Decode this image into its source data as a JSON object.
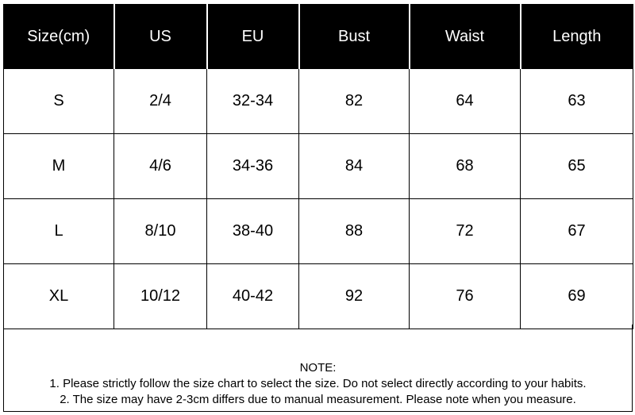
{
  "table": {
    "headers": [
      "Size(cm)",
      "US",
      "EU",
      "Bust",
      "Waist",
      "Length"
    ],
    "rows": [
      [
        "S",
        "2/4",
        "32-34",
        "82",
        "64",
        "63"
      ],
      [
        "M",
        "4/6",
        "34-36",
        "84",
        "68",
        "65"
      ],
      [
        "L",
        "8/10",
        "38-40",
        "88",
        "72",
        "67"
      ],
      [
        "XL",
        "10/12",
        "40-42",
        "92",
        "76",
        "69"
      ]
    ]
  },
  "note": {
    "title": "NOTE:",
    "line1": "1. Please strictly follow the size chart  to select the size. Do not select directly according to your habits.",
    "line2": "2. The size may have 2-3cm differs due to manual measurement. Please note when you measure."
  },
  "colors": {
    "header_bg": "#000000",
    "header_text": "#ffffff",
    "border": "#000000"
  }
}
